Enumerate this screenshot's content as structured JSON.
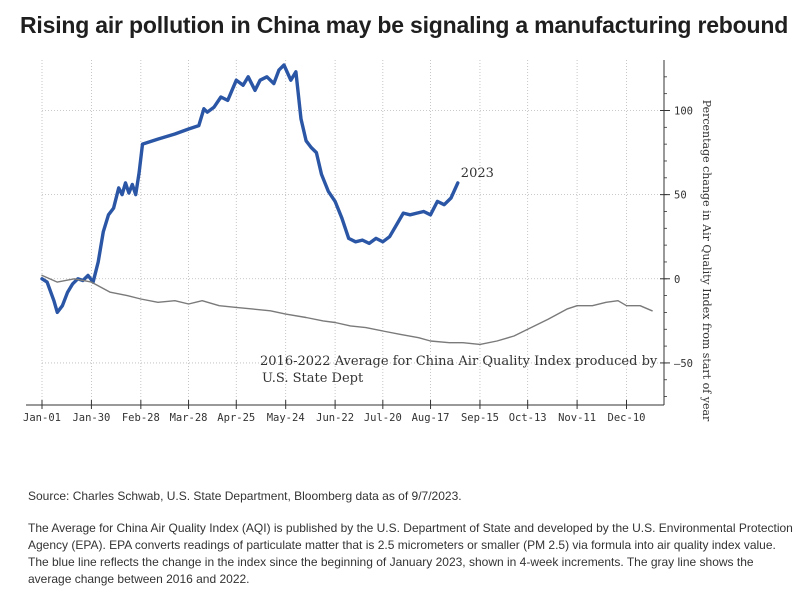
{
  "title": "Rising air pollution in China may be signaling a manufacturing rebound",
  "chart_data": {
    "type": "line",
    "x_tick_labels": [
      "Jan-01",
      "Jan-30",
      "Feb-28",
      "Mar-28",
      "Apr-25",
      "May-24",
      "Jun-22",
      "Jul-20",
      "Aug-17",
      "Sep-15",
      "Oct-13",
      "Nov-11",
      "Dec-10"
    ],
    "y_ticks": [
      100,
      50,
      0,
      -50
    ],
    "ylim": [
      -75,
      130
    ],
    "ylabel": "Percentage change in Air Quality Index from start of year",
    "grid": true,
    "series": [
      {
        "name": "2023",
        "color": "#2a56a5",
        "x": [
          "Jan-01",
          "Jan-04",
          "Jan-08",
          "Jan-10",
          "Jan-13",
          "Jan-16",
          "Jan-19",
          "Jan-22",
          "Jan-25",
          "Jan-28",
          "Jan-31",
          "Feb-03",
          "Feb-06",
          "Feb-09",
          "Feb-12",
          "Feb-15",
          "Feb-17",
          "Feb-19",
          "Feb-21",
          "Feb-23",
          "Feb-25",
          "Feb-27",
          "Mar-01",
          "Mar-10",
          "Mar-20",
          "Mar-28",
          "Apr-03",
          "Apr-06",
          "Apr-08",
          "Apr-12",
          "Apr-16",
          "Apr-20",
          "Apr-25",
          "Apr-29",
          "May-02",
          "May-06",
          "May-09",
          "May-13",
          "May-17",
          "May-20",
          "May-23",
          "May-27",
          "May-30",
          "Jun-02",
          "Jun-05",
          "Jun-08",
          "Jun-11",
          "Jun-14",
          "Jun-18",
          "Jun-22",
          "Jun-26",
          "Jun-30",
          "Jul-04",
          "Jul-08",
          "Jul-12",
          "Jul-16",
          "Jul-20",
          "Jul-24",
          "Jul-28",
          "Aug-01",
          "Aug-05",
          "Aug-09",
          "Aug-13",
          "Aug-17",
          "Aug-21",
          "Aug-25",
          "Aug-29",
          "Sep-02"
        ],
        "values": [
          0,
          -2,
          -13,
          -20,
          -16,
          -8,
          -3,
          0,
          -1,
          2,
          -2,
          10,
          28,
          38,
          42,
          54,
          50,
          57,
          51,
          56,
          50,
          63,
          80,
          83,
          86,
          89,
          91,
          101,
          99,
          102,
          108,
          106,
          118,
          115,
          120,
          112,
          118,
          120,
          116,
          124,
          127,
          118,
          123,
          95,
          82,
          78,
          75,
          62,
          52,
          46,
          36,
          24,
          22,
          23,
          21,
          24,
          22,
          25,
          32,
          39,
          38,
          39,
          40,
          38,
          46,
          44,
          48,
          57
        ]
      },
      {
        "name": "2016-2022 Average for China Air Quality Index produced by U.S. State Dept",
        "color": "#7a7a7a",
        "x": [
          "Jan-01",
          "Jan-10",
          "Jan-20",
          "Jan-30",
          "Feb-10",
          "Feb-20",
          "Feb-28",
          "Mar-10",
          "Mar-20",
          "Mar-28",
          "Apr-05",
          "Apr-15",
          "Apr-25",
          "May-05",
          "May-15",
          "May-24",
          "Jun-05",
          "Jun-15",
          "Jun-22",
          "Jul-01",
          "Jul-10",
          "Jul-20",
          "Jul-30",
          "Aug-10",
          "Aug-17",
          "Aug-28",
          "Sep-05",
          "Sep-15",
          "Sep-25",
          "Oct-05",
          "Oct-13",
          "Oct-25",
          "Nov-05",
          "Nov-11",
          "Nov-20",
          "Nov-28",
          "Dec-05",
          "Dec-10",
          "Dec-18",
          "Dec-25"
        ],
        "values": [
          2,
          -2,
          0,
          -2,
          -8,
          -10,
          -12,
          -14,
          -13,
          -15,
          -13,
          -16,
          -17,
          -18,
          -19,
          -21,
          -23,
          -25,
          -26,
          -28,
          -29,
          -31,
          -33,
          -35,
          -37,
          -38,
          -38,
          -39,
          -37,
          -34,
          -30,
          -24,
          -18,
          -16,
          -16,
          -14,
          -13,
          -16,
          -16,
          -19
        ]
      }
    ],
    "annotations": [
      {
        "text": "2023",
        "series": "2023"
      },
      {
        "text": "2016-2022 Average for China Air Quality Index produced by",
        "series": "2016-2022 Average"
      },
      {
        "text": "U.S. State Dept",
        "series": "2016-2022 Average"
      }
    ]
  },
  "notes": {
    "source": "Source: Charles Schwab, U.S. State Department, Bloomberg data as of 9/7/2023.",
    "description": "The Average for China Air Quality Index (AQI) is published by the U.S. Department of State and developed by the U.S. Environmental Protection Agency (EPA). EPA converts readings of particulate matter that is 2.5 micrometers or smaller (PM 2.5) via formula into air quality index value.  The blue line reflects the change in the index since the beginning of January 2023, shown in 4-week increments. The gray line shows the average change between 2016 and 2022."
  }
}
